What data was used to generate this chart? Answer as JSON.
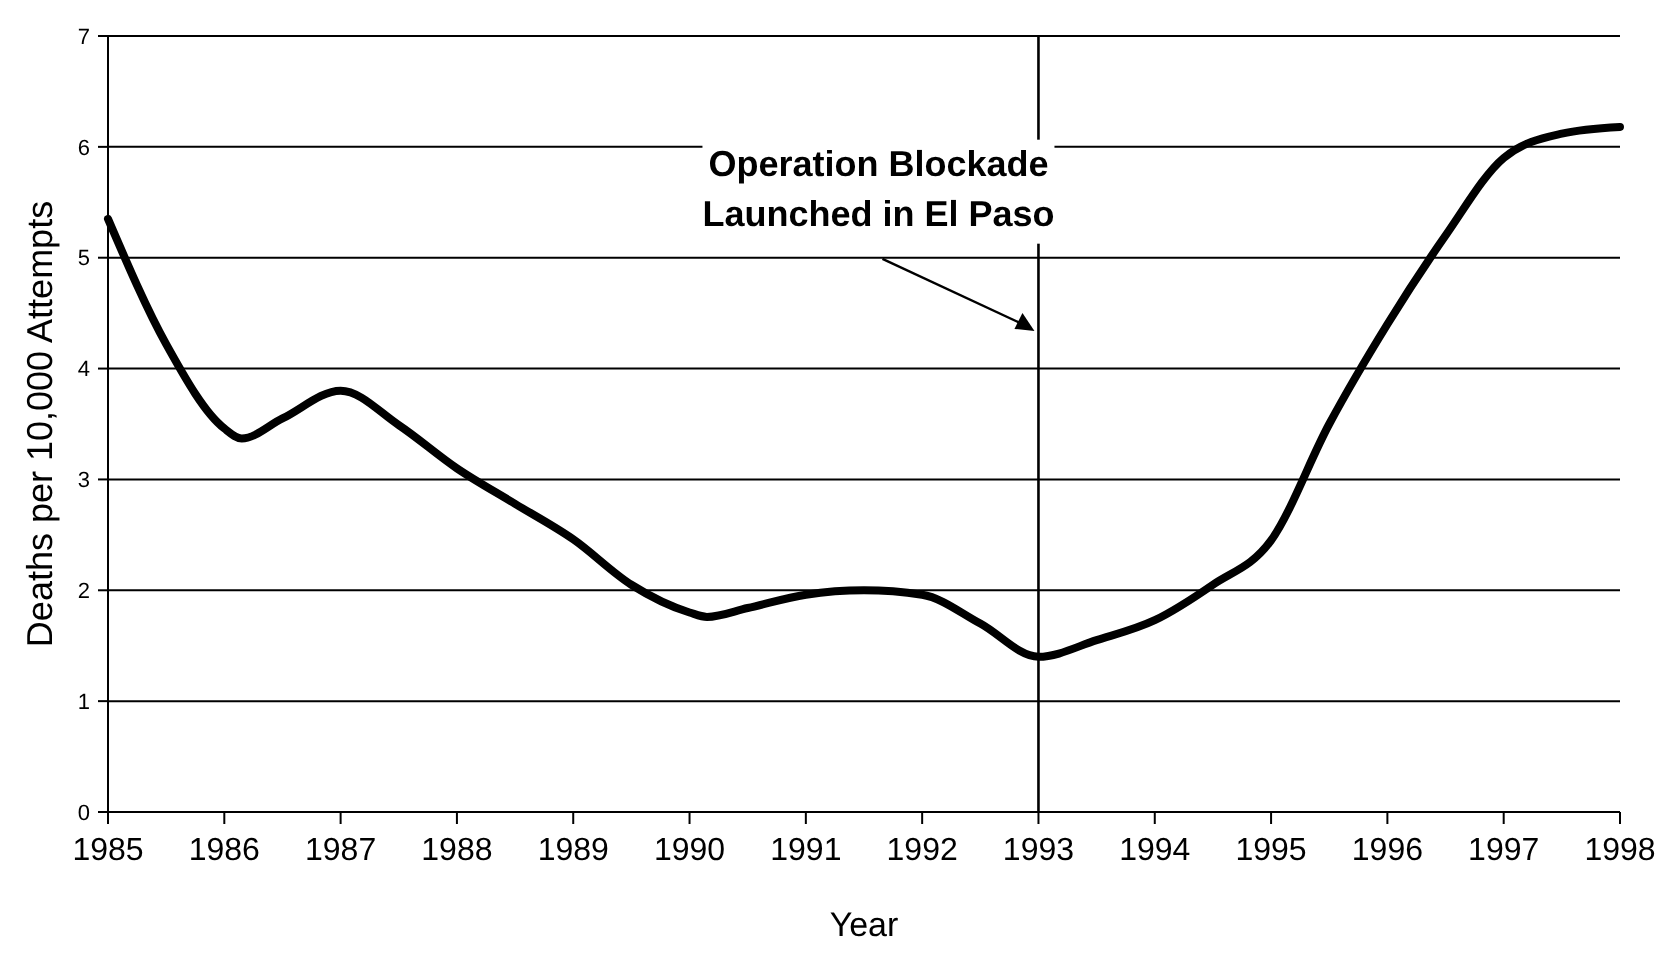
{
  "chart_data": {
    "type": "line",
    "xlabel": "Year",
    "ylabel": "Deaths per 10,000 Attempts",
    "x": [
      1985,
      1985.5,
      1986,
      1986.15,
      1986.5,
      1987,
      1987.5,
      1988,
      1988.5,
      1989,
      1989.5,
      1990,
      1990.15,
      1990.5,
      1991,
      1991.5,
      1992,
      1992.5,
      1993,
      1993.5,
      1994,
      1994.5,
      1995,
      1995.5,
      1996,
      1996.5,
      1997,
      1997.5,
      1998
    ],
    "series": [
      {
        "color": "#000000",
        "values": [
          5.35,
          4.22,
          3.46,
          3.37,
          3.55,
          3.8,
          3.49,
          3.1,
          2.78,
          2.46,
          2.05,
          1.8,
          1.76,
          1.84,
          1.96,
          2.0,
          1.96,
          1.7,
          1.4,
          1.55,
          1.73,
          2.05,
          2.45,
          3.5,
          4.4,
          5.2,
          5.9,
          6.12,
          6.18
        ]
      }
    ],
    "xlim": [
      1985,
      1998
    ],
    "xticks": [
      1985,
      1986,
      1987,
      1988,
      1989,
      1990,
      1991,
      1992,
      1993,
      1994,
      1995,
      1996,
      1997,
      1998
    ],
    "ylim": [
      0,
      7
    ],
    "yticks": [
      0,
      1,
      2,
      3,
      4,
      5,
      6,
      7
    ],
    "grid": "y",
    "marker": "none",
    "line_style": "solid",
    "ref_lines": [
      {
        "axis": "x",
        "value": 1993,
        "color": "#000000"
      }
    ],
    "annotations": [
      "Operation Blockade\nLaunched in El Paso"
    ]
  }
}
